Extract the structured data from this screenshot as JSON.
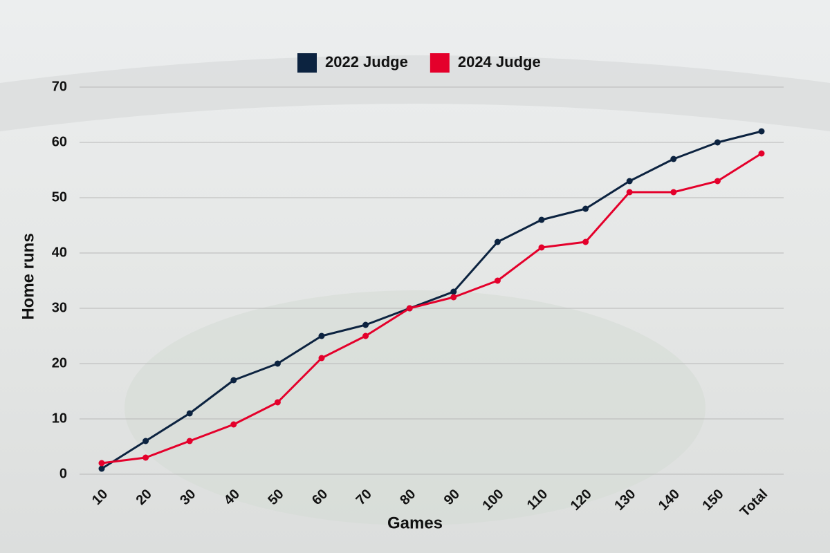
{
  "chart_data": {
    "type": "line",
    "x_label": "Games",
    "y_label": "Home runs",
    "categories": [
      "10",
      "20",
      "30",
      "40",
      "50",
      "60",
      "70",
      "80",
      "90",
      "100",
      "110",
      "120",
      "130",
      "140",
      "150",
      "Total"
    ],
    "series": [
      {
        "name": "2022 Judge",
        "color": "#0c2340",
        "values": [
          1,
          6,
          11,
          17,
          20,
          25,
          27,
          30,
          33,
          42,
          46,
          48,
          53,
          57,
          60,
          62
        ]
      },
      {
        "name": "2024 Judge",
        "color": "#e4002b",
        "values": [
          2,
          3,
          6,
          9,
          13,
          21,
          25,
          30,
          32,
          35,
          41,
          42,
          51,
          51,
          53,
          58
        ]
      }
    ],
    "ylim": [
      0,
      70
    ],
    "yticks": [
      0,
      10,
      20,
      30,
      40,
      50,
      60,
      70
    ],
    "grid": true,
    "legend": "top"
  }
}
